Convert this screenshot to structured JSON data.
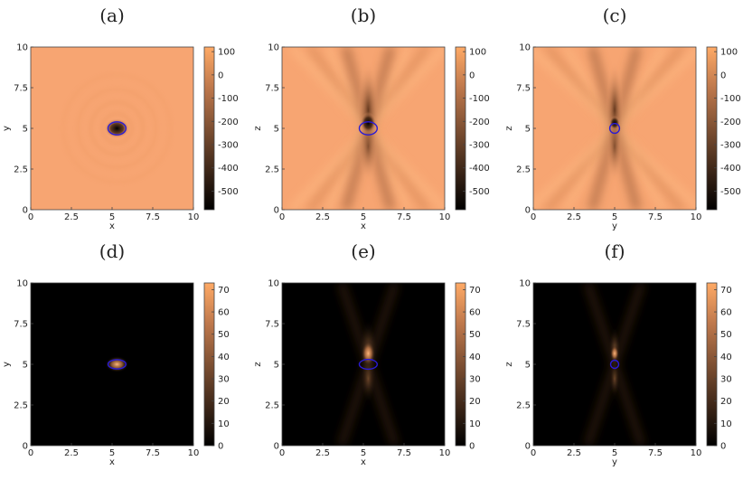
{
  "chart_data": [
    {
      "type": "heatmap",
      "panel_label": "(a)",
      "xlabel": "x",
      "ylabel": "y",
      "xlim": [
        0,
        10
      ],
      "ylim": [
        0,
        10
      ],
      "x_ticks": [
        "0",
        "2.5",
        "5",
        "7.5",
        "10"
      ],
      "y_ticks": [
        "0",
        "2.5",
        "5",
        "7.5",
        "10"
      ],
      "colorbar": {
        "range": [
          -580,
          120
        ],
        "ticks": [
          "100",
          "0",
          "-100",
          "-200",
          "-300",
          "-400",
          "-500"
        ],
        "tick_values": [
          100,
          0,
          -100,
          -200,
          -300,
          -400,
          -500
        ]
      },
      "background_color": "#f7a572",
      "contour": {
        "color": "#2a1bd6",
        "center": [
          5.3,
          5.0
        ],
        "radius": [
          0.55,
          0.4
        ]
      },
      "pattern": "rings"
    },
    {
      "type": "heatmap",
      "panel_label": "(b)",
      "xlabel": "x",
      "ylabel": "z",
      "xlim": [
        0,
        10
      ],
      "ylim": [
        0,
        10
      ],
      "x_ticks": [
        "0",
        "2.5",
        "5",
        "7.5",
        "10"
      ],
      "y_ticks": [
        "0",
        "2.5",
        "5",
        "7.5",
        "10"
      ],
      "colorbar": {
        "range": [
          -580,
          120
        ],
        "ticks": [
          "100",
          "0",
          "-100",
          "-200",
          "-300",
          "-400",
          "-500"
        ],
        "tick_values": [
          100,
          0,
          -100,
          -200,
          -300,
          -400,
          -500
        ]
      },
      "background_color": "#f7a572",
      "contour": {
        "color": "#2a1bd6",
        "center": [
          5.3,
          5.0
        ],
        "radius": [
          0.55,
          0.4
        ]
      },
      "pattern": "hourglass-dark"
    },
    {
      "type": "heatmap",
      "panel_label": "(c)",
      "xlabel": "y",
      "ylabel": "z",
      "xlim": [
        0,
        10
      ],
      "ylim": [
        0,
        10
      ],
      "x_ticks": [
        "0",
        "2.5",
        "5",
        "7.5",
        "10"
      ],
      "y_ticks": [
        "0",
        "2.5",
        "5",
        "7.5",
        "10"
      ],
      "colorbar": {
        "range": [
          -580,
          120
        ],
        "ticks": [
          "100",
          "0",
          "-100",
          "-200",
          "-300",
          "-400",
          "-500"
        ],
        "tick_values": [
          100,
          0,
          -100,
          -200,
          -300,
          -400,
          -500
        ]
      },
      "background_color": "#f7a572",
      "contour": {
        "color": "#2a1bd6",
        "center": [
          5.0,
          5.0
        ],
        "radius": [
          0.3,
          0.3
        ]
      },
      "pattern": "hourglass-dark-narrow"
    },
    {
      "type": "heatmap",
      "panel_label": "(d)",
      "xlabel": "x",
      "ylabel": "y",
      "xlim": [
        0,
        10
      ],
      "ylim": [
        0,
        10
      ],
      "x_ticks": [
        "0",
        "2.5",
        "5",
        "7.5",
        "10"
      ],
      "y_ticks": [
        "0",
        "2.5",
        "5",
        "7.5",
        "10"
      ],
      "colorbar": {
        "range": [
          0,
          73
        ],
        "ticks": [
          "70",
          "60",
          "50",
          "40",
          "30",
          "20",
          "10",
          "0"
        ],
        "tick_values": [
          70,
          60,
          50,
          40,
          30,
          20,
          10,
          0
        ]
      },
      "background_color": "#000000",
      "contour": {
        "color": "#2a1bd6",
        "center": [
          5.3,
          5.0
        ],
        "radius": [
          0.55,
          0.28
        ]
      },
      "pattern": "spot"
    },
    {
      "type": "heatmap",
      "panel_label": "(e)",
      "xlabel": "x",
      "ylabel": "z",
      "xlim": [
        0,
        10
      ],
      "ylim": [
        0,
        10
      ],
      "x_ticks": [
        "0",
        "2.5",
        "5",
        "7.5",
        "10"
      ],
      "y_ticks": [
        "0",
        "2.5",
        "5",
        "7.5",
        "10"
      ],
      "colorbar": {
        "range": [
          0,
          73
        ],
        "ticks": [
          "70",
          "60",
          "50",
          "40",
          "30",
          "20",
          "10",
          "0"
        ],
        "tick_values": [
          70,
          60,
          50,
          40,
          30,
          20,
          10,
          0
        ]
      },
      "background_color": "#000000",
      "contour": {
        "color": "#2a1bd6",
        "center": [
          5.3,
          5.0
        ],
        "radius": [
          0.55,
          0.3
        ]
      },
      "pattern": "hourglass-bright"
    },
    {
      "type": "heatmap",
      "panel_label": "(f)",
      "xlabel": "y",
      "ylabel": "z",
      "xlim": [
        0,
        10
      ],
      "ylim": [
        0,
        10
      ],
      "x_ticks": [
        "0",
        "2.5",
        "5",
        "7.5",
        "10"
      ],
      "y_ticks": [
        "0",
        "2.5",
        "5",
        "7.5",
        "10"
      ],
      "colorbar": {
        "range": [
          0,
          73
        ],
        "ticks": [
          "70",
          "60",
          "50",
          "40",
          "30",
          "20",
          "10",
          "0"
        ],
        "tick_values": [
          70,
          60,
          50,
          40,
          30,
          20,
          10,
          0
        ]
      },
      "background_color": "#000000",
      "contour": {
        "color": "#2a1bd6",
        "center": [
          5.0,
          5.0
        ],
        "radius": [
          0.25,
          0.25
        ]
      },
      "pattern": "hourglass-bright-narrow"
    }
  ]
}
